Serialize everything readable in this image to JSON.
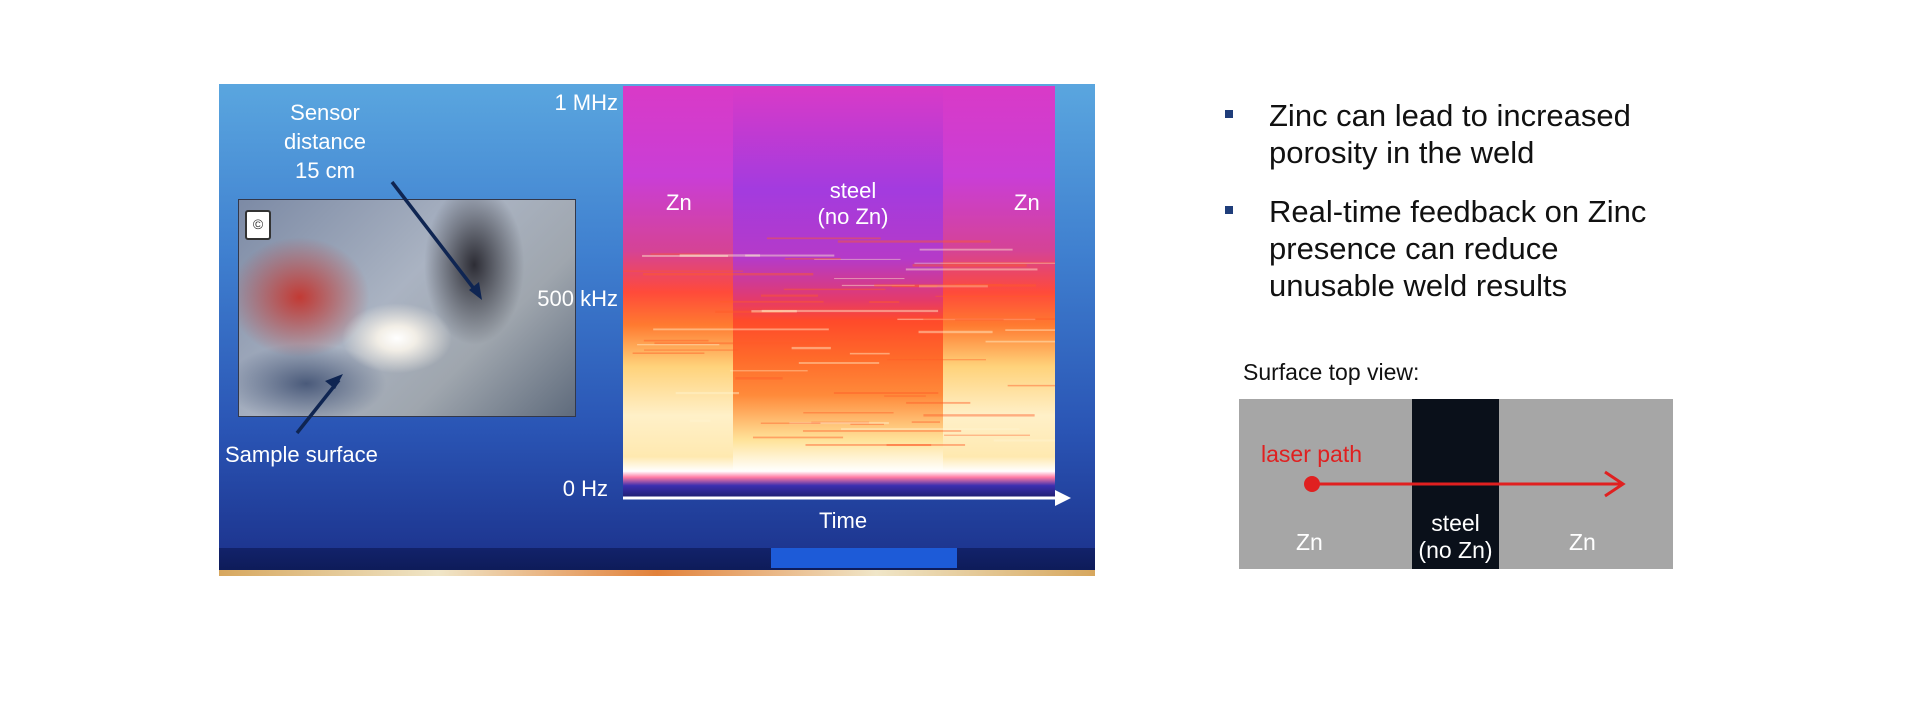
{
  "left_panel": {
    "axis_top": "1 MHz",
    "axis_mid": "500 kHz",
    "axis_bottom": "0 Hz",
    "axis_x": "Time",
    "region_left": "Zn",
    "region_middle_line1": "steel",
    "region_middle_line2": "(no Zn)",
    "region_right": "Zn",
    "sensor_line1": "Sensor",
    "sensor_line2": "distance",
    "sensor_line3": "15 cm",
    "sample_surface": "Sample surface"
  },
  "bullets": [
    {
      "line1": "Zinc can lead to increased",
      "line2": "porosity in the weld"
    },
    {
      "line1": "Real-time feedback on Zinc",
      "line2": "presence can reduce",
      "line3": "unusable weld results"
    }
  ],
  "surface": {
    "title": "Surface top view:",
    "path_label": "laser path",
    "left": "Zn",
    "middle_line1": "steel",
    "middle_line2": "(no Zn)",
    "right": "Zn"
  },
  "colors": {
    "laser_path": "#e02020",
    "bullet_marker": "#1f3d7a",
    "zinc_zone": "#a6a6a6",
    "steel_zone": "#0a101a"
  }
}
